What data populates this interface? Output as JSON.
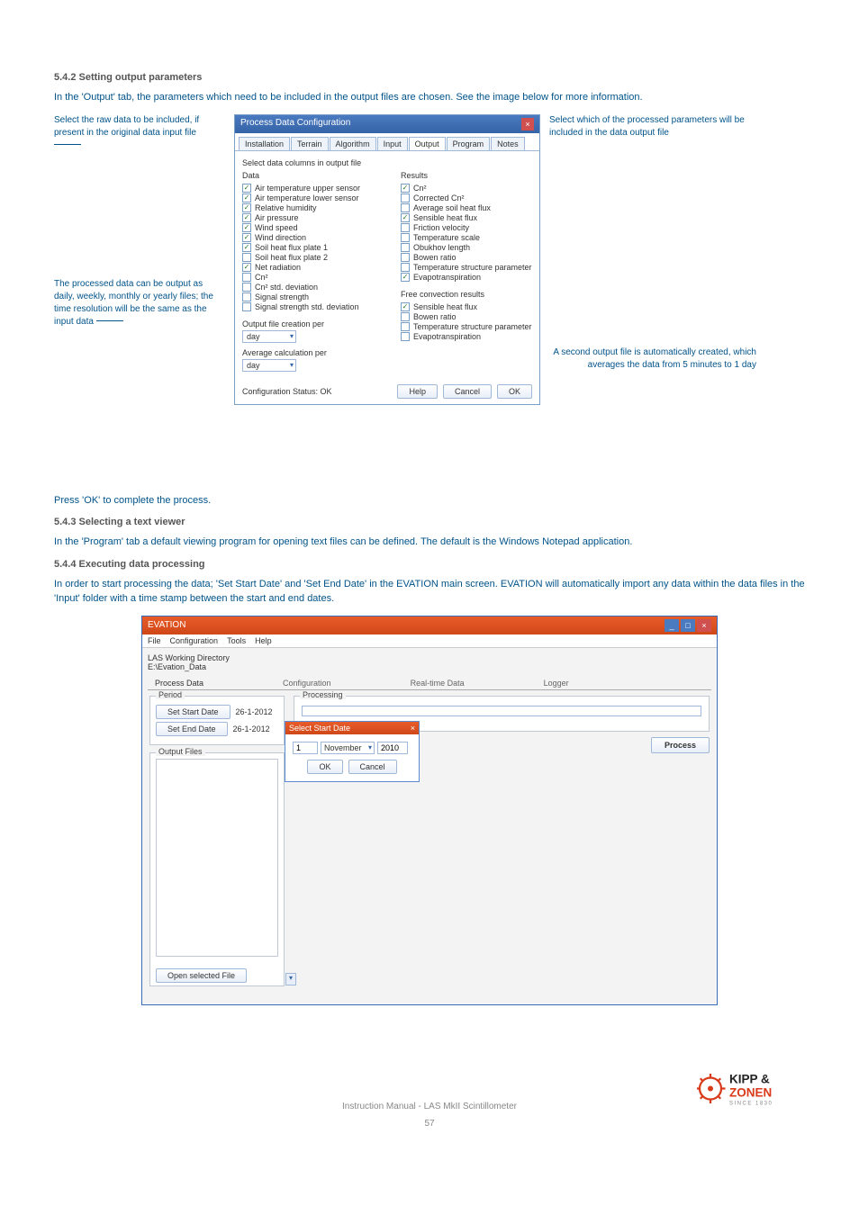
{
  "section1": {
    "heading": "5.4.2 Setting output parameters",
    "intro": "In the 'Output' tab, the parameters which need to be included in the output files are chosen. See the image below for more information."
  },
  "callouts": {
    "left1": "Select the raw data to be included, if present in the original data input file",
    "left2": "The processed data can be output as daily, weekly, monthly or yearly files; the time resolution will be the same as the input data",
    "right1": "Select which of the processed parameters will be included in the data output file",
    "right2": "A second output file is automatically created, which averages the data from 5 minutes to 1 day"
  },
  "dialog1": {
    "title": "Process Data Configuration",
    "tabs": [
      "Installation",
      "Terrain",
      "Algorithm",
      "Input",
      "Output",
      "Program",
      "Notes"
    ],
    "active_tab": 4,
    "fieldset": "Select data columns in output file",
    "left_header": "Data",
    "left_items": [
      {
        "c": true,
        "t": "Air temperature upper sensor"
      },
      {
        "c": true,
        "t": "Air temperature lower sensor"
      },
      {
        "c": true,
        "t": "Relative humidity"
      },
      {
        "c": true,
        "t": "Air pressure"
      },
      {
        "c": true,
        "t": "Wind speed"
      },
      {
        "c": true,
        "t": "Wind direction"
      },
      {
        "c": true,
        "t": "Soil heat flux plate 1"
      },
      {
        "c": false,
        "t": "Soil heat flux plate 2"
      },
      {
        "c": true,
        "t": "Net radiation"
      },
      {
        "c": false,
        "t": "Cn²"
      },
      {
        "c": false,
        "t": "Cn² std. deviation"
      },
      {
        "c": false,
        "t": "Signal strength"
      },
      {
        "c": false,
        "t": "Signal strength std. deviation"
      }
    ],
    "right_header": "Results",
    "right_items": [
      {
        "c": true,
        "t": "Cn²"
      },
      {
        "c": false,
        "t": "Corrected Cn²"
      },
      {
        "c": false,
        "t": "Average soil heat flux"
      },
      {
        "c": true,
        "t": "Sensible heat flux"
      },
      {
        "c": false,
        "t": "Friction velocity"
      },
      {
        "c": false,
        "t": "Temperature scale"
      },
      {
        "c": false,
        "t": "Obukhov length"
      },
      {
        "c": false,
        "t": "Bowen ratio"
      },
      {
        "c": false,
        "t": "Temperature structure parameter"
      },
      {
        "c": true,
        "t": "Evapotranspiration"
      }
    ],
    "free_header": "Free convection results",
    "free_items": [
      {
        "c": true,
        "t": "Sensible heat flux"
      },
      {
        "c": false,
        "t": "Bowen ratio"
      },
      {
        "c": false,
        "t": "Temperature structure parameter"
      },
      {
        "c": false,
        "t": "Evapotranspiration"
      }
    ],
    "output_per_label": "Output file creation per",
    "output_per_value": "day",
    "avg_per_label": "Average calculation per",
    "avg_per_value": "day",
    "status": "Configuration Status: OK",
    "help": "Help",
    "cancel": "Cancel",
    "ok": "OK"
  },
  "press_ok": "Press 'OK' to complete the process.",
  "section2": {
    "heading": "5.4.3 Selecting a text viewer",
    "text": "In the 'Program' tab a default viewing program for opening text files can be defined. The default is the Windows Notepad application."
  },
  "section3": {
    "heading": "5.4.4 Executing data processing",
    "text": "In order to start processing the data; 'Set Start Date' and 'Set End Date' in the EVATION main screen. EVATION will automatically import any data within the data files in the 'Input' folder with a time stamp between the start and end dates."
  },
  "evation": {
    "title": "EVATION",
    "menu": [
      "File",
      "Configuration",
      "Tools",
      "Help"
    ],
    "wd_label": "LAS Working Directory",
    "wd_value": "E:\\Evation_Data",
    "tabs": [
      "Process Data",
      "Configuration",
      "Real-time Data",
      "Logger"
    ],
    "period": "Period",
    "set_start": "Set Start Date",
    "start_val": "26-1-2012",
    "set_end": "Set End Date",
    "end_val": "26-1-2012",
    "output_files": "Output Files",
    "open_file": "Open selected File",
    "processing": "Processing",
    "process_btn": "Process",
    "date_dialog_title": "Select Start Date",
    "date_day": "1",
    "date_month": "November",
    "date_year": "2010",
    "date_ok": "OK",
    "date_cancel": "Cancel"
  },
  "footer": {
    "manual": "Instruction Manual - LAS MkII Scintillometer",
    "page": "57",
    "brand1": "KIPP &",
    "brand2": "ZONEN",
    "brand3": "SINCE 1830"
  },
  "colors": {
    "body_text": "#00538a",
    "heading": "#555555"
  }
}
